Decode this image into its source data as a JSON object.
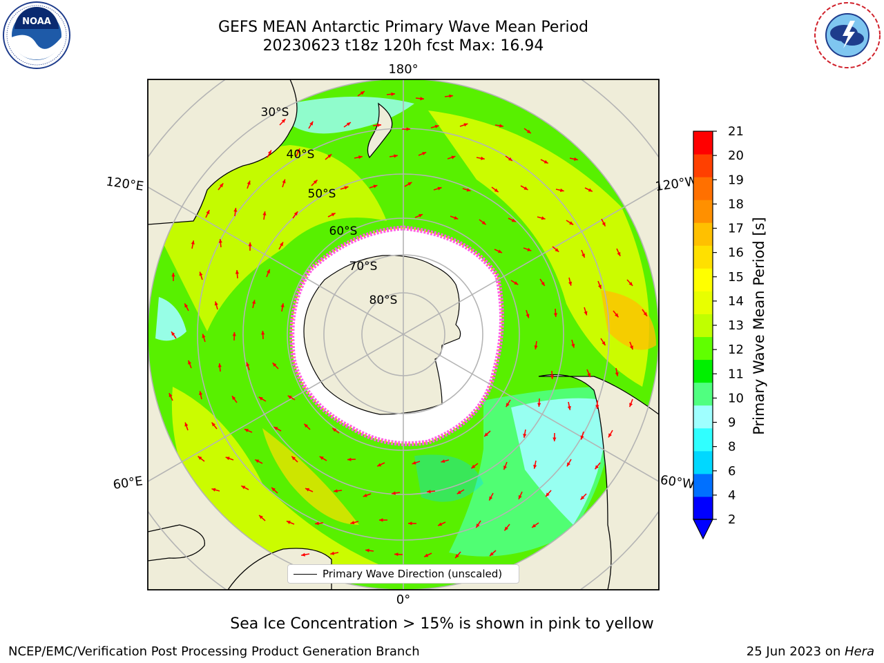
{
  "header": {
    "title_line1": "GEFS MEAN Antarctic Primary Wave Mean Period",
    "title_line2": "20230623 t18z 120h fcst   Max: 16.94"
  },
  "logos": {
    "noaa": {
      "text": "NOAA",
      "ring_text": "NATIONAL OCEANIC AND ATMOSPHERIC ADMINISTRATION · U.S. DEPARTMENT OF COMMERCE"
    },
    "nws": {
      "ring_text": "NATIONAL WEATHER SERVICE"
    }
  },
  "map": {
    "projection": "south-polar-stereographic",
    "longitude_labels": {
      "top": "180°",
      "bottom": "0°",
      "left_upper": "120°E",
      "left_lower": "60°E",
      "right_upper": "120°W",
      "right_lower": "60°W"
    },
    "latitude_labels": [
      "30°S",
      "40°S",
      "50°S",
      "60°S",
      "70°S",
      "80°S"
    ],
    "legend_label": "Primary Wave Direction (unscaled)",
    "colors": {
      "land": "#efedd9",
      "ice": "#ffffff",
      "ice_edge": "#ff5ce6",
      "arrow": "#ff0000",
      "grid": "#b4b4b4"
    }
  },
  "colorbar": {
    "label": "Primary Wave Mean Period [s]",
    "ticks": [
      "21",
      "20",
      "19",
      "18",
      "17",
      "16",
      "15",
      "14",
      "13",
      "12",
      "11",
      "10",
      "9",
      "8",
      "6",
      "4",
      "2"
    ],
    "colors": [
      "#0000ff",
      "#0070ff",
      "#00d8ff",
      "#30ffff",
      "#9fffff",
      "#50ff80",
      "#00f000",
      "#60ff00",
      "#c0ff00",
      "#e8ff00",
      "#ffff00",
      "#ffe000",
      "#ffc000",
      "#ff9000",
      "#ff7000",
      "#ff4000",
      "#ff0000"
    ],
    "extend": "min"
  },
  "caption": "Sea Ice Concentration > 15% is shown in pink to yellow",
  "footer": {
    "left": "NCEP/EMC/Verification Post Processing Product Generation Branch",
    "right_prefix": "25 Jun 2023 on ",
    "right_italic": "Hera"
  }
}
